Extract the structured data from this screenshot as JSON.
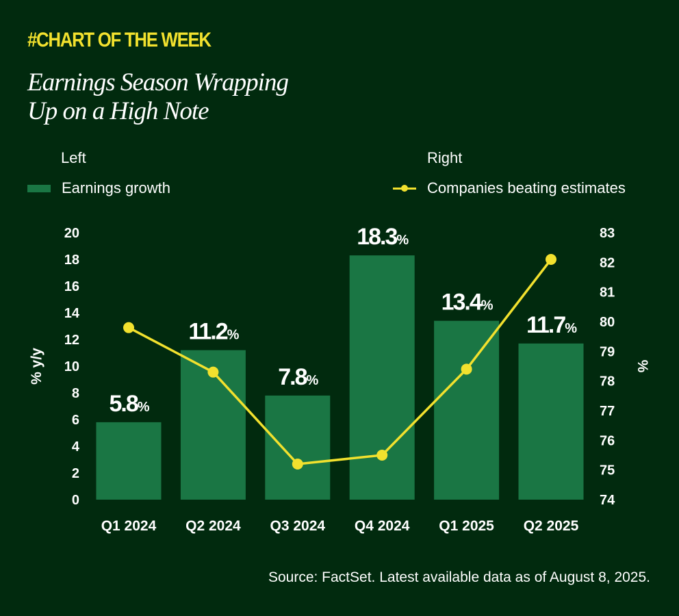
{
  "header": {
    "kicker": "#CHART OF THE WEEK",
    "title_line1": "Earnings Season Wrapping",
    "title_line2": "Up on a High Note"
  },
  "legend": {
    "left_heading": "Left",
    "left_series": "Earnings growth",
    "right_heading": "Right",
    "right_series": "Companies beating estimates"
  },
  "colors": {
    "background": "#012a0e",
    "bar": "#1a7644",
    "line": "#f2e12e",
    "accent": "#f2e12e"
  },
  "chart_data": {
    "type": "bar",
    "categories": [
      "Q1 2024",
      "Q2 2024",
      "Q3 2024",
      "Q4 2024",
      "Q1 2025",
      "Q2 2025"
    ],
    "series": [
      {
        "name": "Earnings growth",
        "type": "bar",
        "axis": "left",
        "values": [
          5.8,
          11.2,
          7.8,
          18.3,
          13.4,
          11.7
        ],
        "labels": [
          "5.8",
          "11.2",
          "7.8",
          "18.3",
          "13.4",
          "11.7"
        ],
        "label_suffix": "%"
      },
      {
        "name": "Companies beating estimates",
        "type": "line",
        "axis": "right",
        "values": [
          79.8,
          78.3,
          75.2,
          75.5,
          78.4,
          82.1
        ]
      }
    ],
    "left_axis": {
      "label": "% y/y",
      "min": 0,
      "max": 20,
      "ticks": [
        "0",
        "2",
        "4",
        "6",
        "8",
        "10",
        "12",
        "14",
        "16",
        "18",
        "20"
      ]
    },
    "right_axis": {
      "label": "%",
      "min": 74,
      "max": 83,
      "ticks": [
        "74",
        "75",
        "76",
        "77",
        "78",
        "79",
        "80",
        "81",
        "82",
        "83"
      ]
    },
    "grid": false,
    "legend_position": "top"
  },
  "source": "Source: FactSet. Latest available data as of August 8, 2025."
}
